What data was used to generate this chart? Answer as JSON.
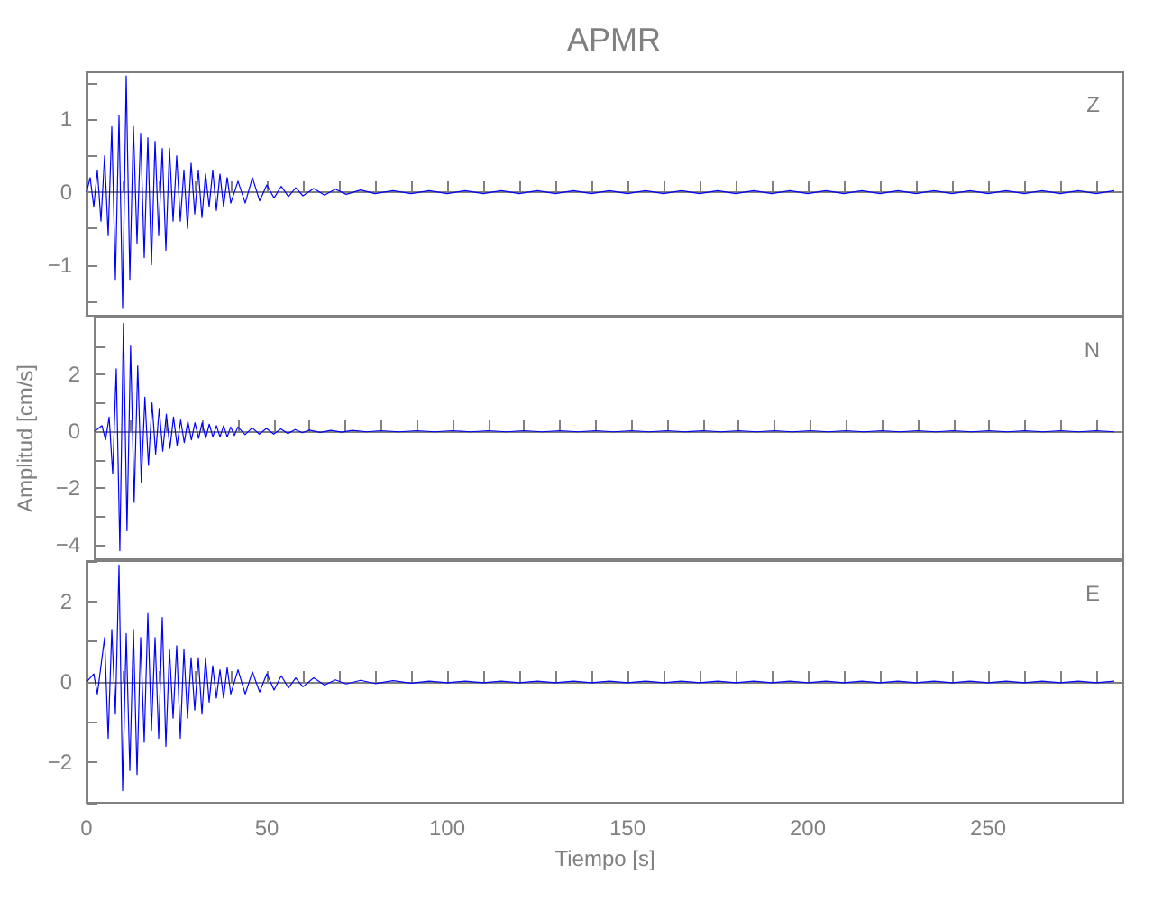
{
  "chart_data": [
    {
      "type": "line",
      "title": "APMR",
      "annotations": [
        "Z"
      ],
      "tick_labels": "y",
      "color": "#0000ff",
      "x": [
        0,
        1,
        2,
        3,
        4,
        5,
        6,
        7,
        8,
        9,
        10,
        11,
        12,
        13,
        14,
        15,
        16,
        17,
        18,
        19,
        20,
        21,
        22,
        23,
        24,
        25,
        26,
        27,
        28,
        29,
        30,
        31,
        32,
        33,
        34,
        35,
        36,
        37,
        38,
        39,
        40,
        42,
        44,
        46,
        48,
        50,
        52,
        54,
        56,
        58,
        60,
        63,
        66,
        69,
        72,
        76,
        80,
        85,
        90,
        95,
        100,
        105,
        110,
        115,
        120,
        125,
        130,
        135,
        140,
        145,
        150,
        155,
        160,
        165,
        170,
        175,
        180,
        185,
        190,
        195,
        200,
        205,
        210,
        215,
        220,
        225,
        230,
        235,
        240,
        245,
        250,
        255,
        260,
        265,
        270,
        275,
        280,
        285
      ],
      "values": [
        0,
        0.2,
        -0.2,
        0.3,
        -0.4,
        0.5,
        -0.6,
        0.9,
        -1.2,
        1.05,
        -1.6,
        1.6,
        -1.2,
        0.9,
        -0.7,
        0.8,
        -0.9,
        0.75,
        -1.0,
        0.7,
        -0.6,
        0.6,
        -0.8,
        0.6,
        -0.4,
        0.5,
        -0.4,
        0.3,
        -0.5,
        0.4,
        -0.3,
        0.3,
        -0.35,
        0.25,
        -0.2,
        0.3,
        -0.25,
        0.25,
        -0.2,
        0.2,
        -0.15,
        0.15,
        -0.15,
        0.2,
        -0.12,
        0.1,
        -0.08,
        0.08,
        -0.06,
        0.06,
        -0.05,
        0.05,
        -0.04,
        0.04,
        -0.03,
        0.03,
        -0.02,
        0.02,
        -0.02,
        0.02,
        -0.02,
        0.02,
        -0.02,
        0.02,
        -0.02,
        0.02,
        -0.02,
        0.02,
        -0.02,
        0.02,
        -0.02,
        0.02,
        -0.02,
        0.02,
        -0.02,
        0.02,
        -0.02,
        0.02,
        -0.02,
        0.02,
        -0.02,
        0.02,
        -0.02,
        0.02,
        -0.02,
        0.02,
        -0.02,
        0.02,
        -0.02,
        0.02,
        -0.02,
        0.02,
        -0.02,
        0.02,
        -0.02,
        0.02,
        -0.02,
        0.02
      ],
      "xlim": [
        0,
        287.5
      ],
      "xticks": [
        0,
        {
          "value": 10,
          "label": null
        },
        {
          "value": 20,
          "label": null
        },
        {
          "value": 30,
          "label": null
        },
        {
          "value": 40,
          "label": null
        },
        50,
        {
          "value": 60,
          "label": null
        },
        {
          "value": 70,
          "label": null
        },
        {
          "value": 80,
          "label": null
        },
        {
          "value": 90,
          "label": null
        },
        100,
        {
          "value": 110,
          "label": null
        },
        {
          "value": 120,
          "label": null
        },
        {
          "value": 130,
          "label": null
        },
        {
          "value": 140,
          "label": null
        },
        150,
        {
          "value": 160,
          "label": null
        },
        {
          "value": 170,
          "label": null
        },
        {
          "value": 180,
          "label": null
        },
        {
          "value": 190,
          "label": null
        },
        200,
        {
          "value": 210,
          "label": null
        },
        {
          "value": 220,
          "label": null
        },
        {
          "value": 230,
          "label": null
        },
        {
          "value": 240,
          "label": null
        },
        250,
        {
          "value": 260,
          "label": null
        },
        {
          "value": 270,
          "label": null
        },
        {
          "value": 280,
          "label": null
        }
      ],
      "ylim": [
        -1.7,
        1.65
      ],
      "yticks": [
        {
          "value": -1.5,
          "label": null
        },
        {
          "value": -1,
          "label": "−1"
        },
        {
          "value": -0.5,
          "label": null
        },
        0,
        {
          "value": 0.5,
          "label": null
        },
        1,
        {
          "value": 1.5,
          "label": null
        }
      ]
    },
    {
      "type": "line",
      "ylabel": "Amplitud [cm/s]",
      "annotations": [
        "N"
      ],
      "tick_labels": "y",
      "color": "#0000ff",
      "x": [
        0,
        1,
        2,
        3,
        4,
        5,
        6,
        7,
        8,
        9,
        10,
        11,
        12,
        13,
        14,
        15,
        16,
        17,
        18,
        19,
        20,
        21,
        22,
        23,
        24,
        25,
        26,
        27,
        28,
        29,
        30,
        31,
        32,
        33,
        34,
        35,
        36,
        37,
        38,
        39,
        40,
        42,
        44,
        46,
        48,
        50,
        52,
        54,
        56,
        58,
        60,
        63,
        66,
        69,
        72,
        76,
        80,
        85,
        90,
        95,
        100,
        105,
        110,
        115,
        120,
        125,
        130,
        135,
        140,
        145,
        150,
        155,
        160,
        165,
        170,
        175,
        180,
        185,
        190,
        195,
        200,
        205,
        210,
        215,
        220,
        225,
        230,
        235,
        240,
        245,
        250,
        255,
        260,
        265,
        270,
        275,
        280,
        285
      ],
      "values": [
        0,
        0.1,
        0.2,
        -0.3,
        0.5,
        -1.5,
        2.2,
        -4.2,
        3.8,
        -3.5,
        3.0,
        -2.5,
        2.3,
        -1.8,
        1.2,
        -1.2,
        1.0,
        -0.8,
        0.8,
        -0.7,
        0.6,
        -0.6,
        0.5,
        -0.5,
        0.4,
        -0.4,
        0.35,
        -0.3,
        0.3,
        -0.25,
        0.3,
        -0.25,
        0.25,
        -0.2,
        0.2,
        -0.2,
        0.2,
        -0.2,
        0.15,
        -0.15,
        0.15,
        -0.12,
        0.12,
        -0.1,
        0.1,
        -0.1,
        0.08,
        -0.08,
        0.06,
        -0.05,
        0.04,
        -0.04,
        0.03,
        -0.03,
        0.03,
        -0.02,
        0.02,
        -0.02,
        0.02,
        -0.02,
        0.02,
        -0.02,
        0.02,
        -0.02,
        0.02,
        -0.02,
        0.02,
        -0.02,
        0.02,
        -0.02,
        0.02,
        -0.02,
        0.02,
        -0.02,
        0.02,
        -0.02,
        0.02,
        -0.02,
        0.02,
        -0.02,
        0.02,
        -0.02,
        0.02,
        -0.02,
        0.02,
        -0.02,
        0.02,
        -0.02,
        0.02,
        -0.02,
        0.02,
        -0.02,
        0.02,
        -0.02,
        0.02,
        -0.02,
        0.02,
        -0.02
      ],
      "xlim": [
        0,
        287.5
      ],
      "xticks": [
        0,
        {
          "value": 10,
          "label": null
        },
        {
          "value": 20,
          "label": null
        },
        {
          "value": 30,
          "label": null
        },
        {
          "value": 40,
          "label": null
        },
        50,
        {
          "value": 60,
          "label": null
        },
        {
          "value": 70,
          "label": null
        },
        {
          "value": 80,
          "label": null
        },
        {
          "value": 90,
          "label": null
        },
        100,
        {
          "value": 110,
          "label": null
        },
        {
          "value": 120,
          "label": null
        },
        {
          "value": 130,
          "label": null
        },
        {
          "value": 140,
          "label": null
        },
        150,
        {
          "value": 160,
          "label": null
        },
        {
          "value": 170,
          "label": null
        },
        {
          "value": 180,
          "label": null
        },
        {
          "value": 190,
          "label": null
        },
        200,
        {
          "value": 210,
          "label": null
        },
        {
          "value": 220,
          "label": null
        },
        {
          "value": 230,
          "label": null
        },
        {
          "value": 240,
          "label": null
        },
        250,
        {
          "value": 260,
          "label": null
        },
        {
          "value": 270,
          "label": null
        },
        {
          "value": 280,
          "label": null
        }
      ],
      "ylim": [
        -4.5,
        4
      ],
      "yticks": [
        {
          "value": -4,
          "label": "−4"
        },
        {
          "value": -3,
          "label": null
        },
        {
          "value": -2,
          "label": "−2"
        },
        {
          "value": -1,
          "label": null
        },
        0,
        {
          "value": 1,
          "label": null
        },
        2,
        {
          "value": 3,
          "label": null
        }
      ]
    },
    {
      "type": "line",
      "xlabel": "Tiempo [s]",
      "annotations": [
        "E"
      ],
      "color": "#0000ff",
      "x": [
        0,
        1,
        2,
        3,
        4,
        5,
        6,
        7,
        8,
        9,
        10,
        11,
        12,
        13,
        14,
        15,
        16,
        17,
        18,
        19,
        20,
        21,
        22,
        23,
        24,
        25,
        26,
        27,
        28,
        29,
        30,
        31,
        32,
        33,
        34,
        35,
        36,
        37,
        38,
        39,
        40,
        42,
        44,
        46,
        48,
        50,
        52,
        54,
        56,
        58,
        60,
        63,
        66,
        69,
        72,
        76,
        80,
        85,
        90,
        95,
        100,
        105,
        110,
        115,
        120,
        125,
        130,
        135,
        140,
        145,
        150,
        155,
        160,
        165,
        170,
        175,
        180,
        185,
        190,
        195,
        200,
        205,
        210,
        215,
        220,
        225,
        230,
        235,
        240,
        245,
        250,
        255,
        260,
        265,
        270,
        275,
        280,
        285
      ],
      "values": [
        0,
        0.1,
        0.2,
        -0.3,
        0.4,
        1.1,
        -1.4,
        1.3,
        -0.8,
        2.9,
        -2.7,
        1.2,
        -2.2,
        1.3,
        -2.3,
        1.1,
        -1.5,
        1.7,
        -1.2,
        1.1,
        -1.4,
        1.6,
        -1.6,
        0.8,
        -0.9,
        0.9,
        -1.4,
        0.8,
        -0.9,
        0.6,
        -0.7,
        0.6,
        -0.8,
        0.6,
        -0.5,
        0.4,
        -0.4,
        0.3,
        -0.4,
        0.35,
        -0.3,
        0.3,
        -0.3,
        0.25,
        -0.25,
        0.2,
        -0.2,
        0.15,
        -0.15,
        0.1,
        -0.12,
        0.1,
        -0.08,
        0.05,
        -0.05,
        0.04,
        -0.04,
        0.03,
        -0.03,
        0.02,
        -0.02,
        0.02,
        -0.02,
        0.02,
        -0.02,
        0.02,
        -0.02,
        0.02,
        -0.02,
        0.02,
        -0.02,
        0.02,
        -0.02,
        0.02,
        -0.02,
        0.02,
        -0.02,
        0.02,
        -0.02,
        0.02,
        -0.02,
        0.02,
        -0.02,
        0.02,
        -0.02,
        0.02,
        -0.02,
        0.02,
        -0.02,
        0.02,
        -0.02,
        0.02,
        -0.02,
        0.02,
        -0.02,
        0.02,
        -0.02,
        0.02
      ],
      "xlim": [
        0,
        287.5
      ],
      "xticks": [
        0,
        {
          "value": 10,
          "label": null
        },
        {
          "value": 20,
          "label": null
        },
        {
          "value": 30,
          "label": null
        },
        {
          "value": 40,
          "label": null
        },
        50,
        {
          "value": 60,
          "label": null
        },
        {
          "value": 70,
          "label": null
        },
        {
          "value": 80,
          "label": null
        },
        {
          "value": 90,
          "label": null
        },
        100,
        {
          "value": 110,
          "label": null
        },
        {
          "value": 120,
          "label": null
        },
        {
          "value": 130,
          "label": null
        },
        {
          "value": 140,
          "label": null
        },
        150,
        {
          "value": 160,
          "label": null
        },
        {
          "value": 170,
          "label": null
        },
        {
          "value": 180,
          "label": null
        },
        {
          "value": 190,
          "label": null
        },
        200,
        {
          "value": 210,
          "label": null
        },
        {
          "value": 220,
          "label": null
        },
        {
          "value": 230,
          "label": null
        },
        {
          "value": 240,
          "label": null
        },
        250,
        {
          "value": 260,
          "label": null
        },
        {
          "value": 270,
          "label": null
        },
        {
          "value": 280,
          "label": null
        }
      ],
      "ylim": [
        -3,
        3
      ],
      "yticks": [
        {
          "value": -3,
          "label": null
        },
        {
          "value": -2,
          "label": "−2"
        },
        {
          "value": -1,
          "label": null
        },
        0,
        {
          "value": 1,
          "label": null
        },
        2,
        {
          "value": 3,
          "label": null
        }
      ]
    }
  ]
}
